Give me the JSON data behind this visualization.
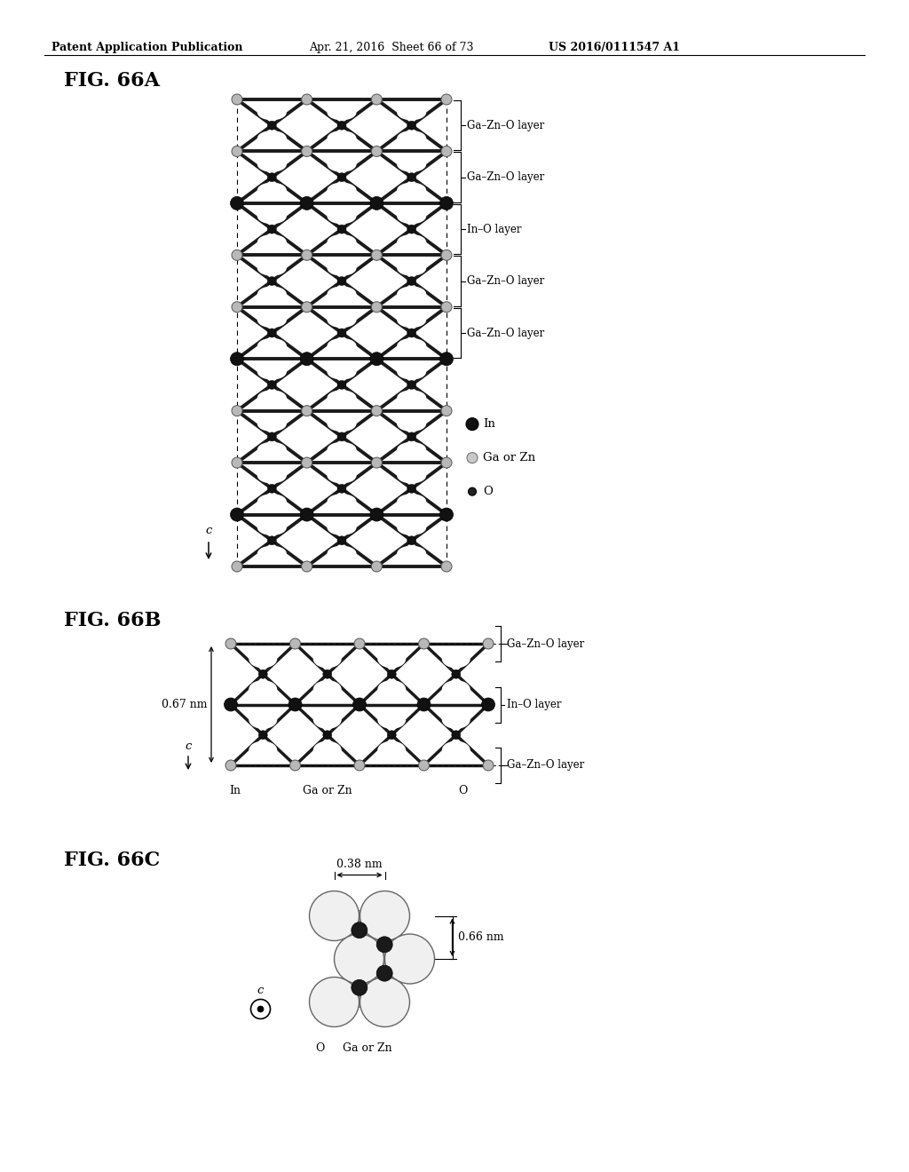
{
  "header_left": "Patent Application Publication",
  "header_mid": "Apr. 21, 2016  Sheet 66 of 73",
  "header_right": "US 2016/0111547 A1",
  "fig_a_label": "FIG. 66A",
  "fig_b_label": "FIG. 66B",
  "fig_c_label": "FIG. 66C",
  "background_color": "#ffffff",
  "layer_labels_a": [
    "Ga–Zn–O layer",
    "Ga–Zn–O layer",
    "In–O layer",
    "Ga–Zn–O layer",
    "Ga–Zn–O layer"
  ],
  "layer_labels_b": [
    "Ga–Zn–O layer",
    "In–O layer",
    "Ga–Zn–O layer"
  ],
  "legend_a": [
    "In",
    "Ga or Zn",
    "O"
  ],
  "dim_b": "0.67 nm",
  "dim_c_h": "0.38 nm",
  "dim_c_v": "0.66 nm",
  "labels_b_bottom": [
    "In",
    "Ga or Zn",
    "O"
  ],
  "labels_c_bottom": [
    "O",
    "Ga or Zn"
  ]
}
